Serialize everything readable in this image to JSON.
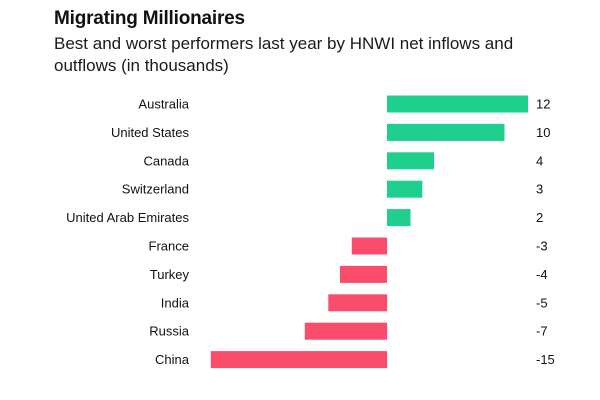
{
  "header": {
    "title": "Migrating Millionaires",
    "subtitle": "Best and worst performers last year by HNWI net inflows and outflows (in thousands)"
  },
  "colors": {
    "positive": "#1ecf8e",
    "negative": "#fa4d6c"
  },
  "chart_data": {
    "type": "bar",
    "orientation": "horizontal",
    "title": "Migrating Millionaires",
    "subtitle": "Best and worst performers last year by HNWI net inflows and outflows (in thousands)",
    "categories": [
      "Australia",
      "United States",
      "Canada",
      "Switzerland",
      "United Arab Emirates",
      "France",
      "Turkey",
      "India",
      "Russia",
      "China"
    ],
    "values": [
      12,
      10,
      4,
      3,
      2,
      -3,
      -4,
      -5,
      -7,
      -15
    ],
    "value_labels": [
      "12",
      "10",
      "4",
      "3",
      "2",
      "-3",
      "-4",
      "-5",
      "-7",
      "-15"
    ],
    "xlim": [
      -15,
      12
    ],
    "grid": false,
    "legend": "none"
  }
}
